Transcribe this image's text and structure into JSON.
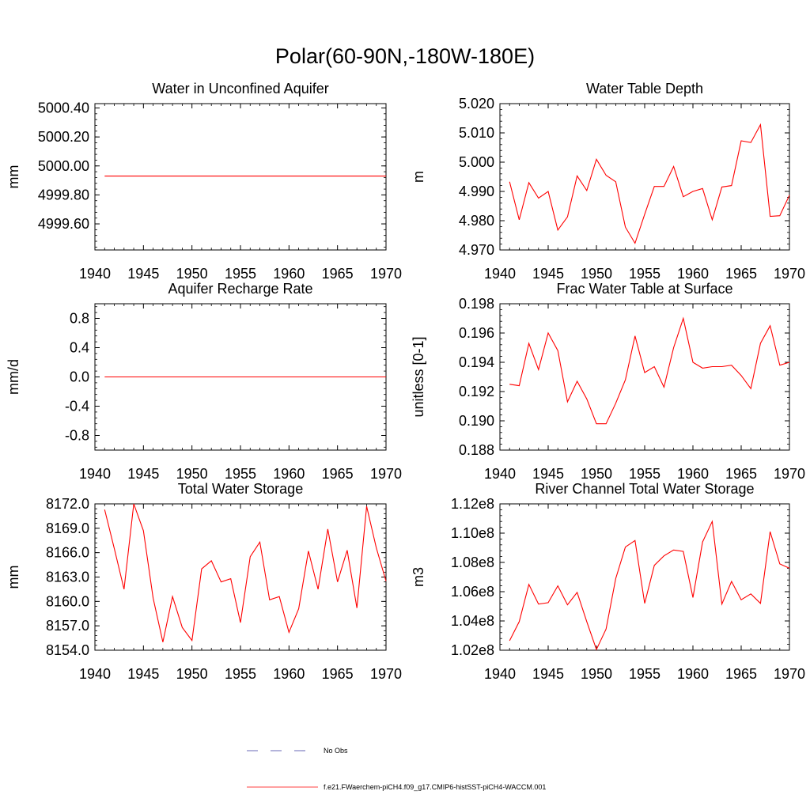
{
  "page_title": "Polar(60-90N,-180W-180E)",
  "legend": {
    "obs_label": "No Obs",
    "model_label": "f.e21.FWaerchem-piCH4.f09_g17.CMIP6-histSST-piCH4-WACCM.001",
    "obs_color": "#3a3aa0",
    "model_color": "#ff0000"
  },
  "chart_data": [
    {
      "type": "line",
      "title": "Water in Unconfined Aquifer",
      "ylabel": "mm",
      "xlim": [
        1940,
        1970
      ],
      "ylim": [
        4999.42,
        5000.43
      ],
      "x_ticks": [
        "1940",
        "1945",
        "1950",
        "1955",
        "1960",
        "1965",
        "1970"
      ],
      "y_ticks": [
        {
          "value": 5000.4,
          "label": "5000.40"
        },
        {
          "value": 5000.2,
          "label": "5000.20"
        },
        {
          "value": 5000.0,
          "label": "5000.00"
        },
        {
          "value": 4999.8,
          "label": "4999.80"
        },
        {
          "value": 4999.6,
          "label": "4999.60"
        }
      ],
      "x": [
        1941,
        1970
      ],
      "y": [
        4999.93,
        4999.93
      ]
    },
    {
      "type": "line",
      "title": "Water Table Depth",
      "ylabel": "m",
      "xlim": [
        1940,
        1970
      ],
      "ylim": [
        4.97,
        5.02
      ],
      "x_ticks": [
        "1940",
        "1945",
        "1950",
        "1955",
        "1960",
        "1965",
        "1970"
      ],
      "y_ticks": [
        {
          "value": 5.02,
          "label": "5.020"
        },
        {
          "value": 5.01,
          "label": "5.010"
        },
        {
          "value": 5.0,
          "label": "5.000"
        },
        {
          "value": 4.99,
          "label": "4.990"
        },
        {
          "value": 4.98,
          "label": "4.980"
        },
        {
          "value": 4.97,
          "label": "4.970"
        }
      ],
      "x": [
        1941,
        1942,
        1943,
        1944,
        1945,
        1946,
        1947,
        1948,
        1949,
        1950,
        1951,
        1952,
        1953,
        1954,
        1955,
        1956,
        1957,
        1958,
        1959,
        1960,
        1961,
        1962,
        1963,
        1964,
        1965,
        1966,
        1967,
        1968,
        1969,
        1970
      ],
      "y": [
        4.9933,
        4.9803,
        4.993,
        4.9877,
        4.99,
        4.9768,
        4.9813,
        4.9953,
        4.9903,
        5.001,
        4.9955,
        4.9933,
        4.9778,
        4.9723,
        4.9822,
        4.9917,
        4.9917,
        4.9985,
        4.9882,
        4.99,
        4.991,
        4.9803,
        4.9915,
        4.992,
        5.0073,
        5.0067,
        5.0128,
        4.9815,
        4.9817,
        4.9887
      ]
    },
    {
      "type": "line",
      "title": "Aquifer Recharge Rate",
      "ylabel": "mm/d",
      "xlim": [
        1940,
        1970
      ],
      "ylim": [
        -1.0,
        1.0
      ],
      "x_ticks": [
        "1940",
        "1945",
        "1950",
        "1955",
        "1960",
        "1965",
        "1970"
      ],
      "y_ticks": [
        {
          "value": 0.8,
          "label": "0.8"
        },
        {
          "value": 0.4,
          "label": "0.4"
        },
        {
          "value": 0.0,
          "label": "0.0"
        },
        {
          "value": -0.4,
          "label": "-0.4"
        },
        {
          "value": -0.8,
          "label": "-0.8"
        }
      ],
      "x": [
        1941,
        1970
      ],
      "y": [
        0.0,
        0.0
      ]
    },
    {
      "type": "line",
      "title": "Frac Water Table at Surface",
      "ylabel": "unitless [0-1]",
      "xlim": [
        1940,
        1970
      ],
      "ylim": [
        0.188,
        0.198
      ],
      "x_ticks": [
        "1940",
        "1945",
        "1950",
        "1955",
        "1960",
        "1965",
        "1970"
      ],
      "y_ticks": [
        {
          "value": 0.198,
          "label": "0.198"
        },
        {
          "value": 0.196,
          "label": "0.196"
        },
        {
          "value": 0.194,
          "label": "0.194"
        },
        {
          "value": 0.192,
          "label": "0.192"
        },
        {
          "value": 0.19,
          "label": "0.190"
        },
        {
          "value": 0.188,
          "label": "0.188"
        }
      ],
      "x": [
        1941,
        1942,
        1943,
        1944,
        1945,
        1946,
        1947,
        1948,
        1949,
        1950,
        1951,
        1952,
        1953,
        1954,
        1955,
        1956,
        1957,
        1958,
        1959,
        1960,
        1961,
        1962,
        1963,
        1964,
        1965,
        1966,
        1967,
        1968,
        1969,
        1970
      ],
      "y": [
        0.1925,
        0.1924,
        0.1953,
        0.1935,
        0.196,
        0.1948,
        0.1913,
        0.1927,
        0.1915,
        0.1898,
        0.1898,
        0.1912,
        0.1928,
        0.1958,
        0.1933,
        0.1937,
        0.1923,
        0.195,
        0.197,
        0.194,
        0.1936,
        0.1937,
        0.1937,
        0.1938,
        0.1931,
        0.1922,
        0.1953,
        0.1965,
        0.1938,
        0.194
      ]
    },
    {
      "type": "line",
      "title": "Total Water Storage",
      "ylabel": "mm",
      "xlim": [
        1940,
        1970
      ],
      "ylim": [
        8154.0,
        8172.0
      ],
      "x_ticks": [
        "1940",
        "1945",
        "1950",
        "1955",
        "1960",
        "1965",
        "1970"
      ],
      "y_ticks": [
        {
          "value": 8172,
          "label": "8172.0"
        },
        {
          "value": 8169,
          "label": "8169.0"
        },
        {
          "value": 8166,
          "label": "8166.0"
        },
        {
          "value": 8163,
          "label": "8163.0"
        },
        {
          "value": 8160,
          "label": "8160.0"
        },
        {
          "value": 8157,
          "label": "8157.0"
        },
        {
          "value": 8154,
          "label": "8154.0"
        }
      ],
      "x": [
        1941,
        1942,
        1943,
        1944,
        1945,
        1946,
        1947,
        1948,
        1949,
        1950,
        1951,
        1952,
        1953,
        1954,
        1955,
        1956,
        1957,
        1958,
        1959,
        1960,
        1961,
        1962,
        1963,
        1964,
        1965,
        1966,
        1967,
        1968,
        1969,
        1970
      ],
      "y": [
        8171.3,
        8166.5,
        8161.5,
        8172.0,
        8168.7,
        8160.4,
        8155.0,
        8160.6,
        8156.8,
        8155.2,
        8164.0,
        8165.0,
        8162.4,
        8162.8,
        8157.4,
        8165.5,
        8167.3,
        8160.2,
        8160.6,
        8156.2,
        8159.1,
        8166.2,
        8161.5,
        8168.9,
        8162.4,
        8166.3,
        8159.2,
        8171.7,
        8166.6,
        8162.5
      ]
    },
    {
      "type": "line",
      "title": "River Channel Total Water Storage",
      "ylabel": "m3",
      "xlim": [
        1940,
        1970
      ],
      "ylim": [
        102000000.0,
        112000000.0
      ],
      "x_ticks": [
        "1940",
        "1945",
        "1950",
        "1955",
        "1960",
        "1965",
        "1970"
      ],
      "y_ticks": [
        {
          "value": 112000000,
          "label": "1.12e8"
        },
        {
          "value": 110000000,
          "label": "1.10e8"
        },
        {
          "value": 108000000,
          "label": "1.08e8"
        },
        {
          "value": 106000000,
          "label": "1.06e8"
        },
        {
          "value": 104000000,
          "label": "1.04e8"
        },
        {
          "value": 102000000,
          "label": "1.02e8"
        }
      ],
      "x": [
        1941,
        1942,
        1943,
        1944,
        1945,
        1946,
        1947,
        1948,
        1949,
        1950,
        1951,
        1952,
        1953,
        1954,
        1955,
        1956,
        1957,
        1958,
        1959,
        1960,
        1961,
        1962,
        1963,
        1964,
        1965,
        1966,
        1967,
        1968,
        1969,
        1970
      ],
      "y": [
        102650000,
        103950000,
        106500000,
        105150000,
        105250000,
        106400000,
        105100000,
        105950000,
        103950000,
        102050000,
        103450000,
        106900000,
        109050000,
        109500000,
        105200000,
        107800000,
        108450000,
        108850000,
        108750000,
        105600000,
        109400000,
        110800000,
        105150000,
        106700000,
        105450000,
        105850000,
        105200000,
        110100000,
        107900000,
        107600000
      ]
    }
  ]
}
